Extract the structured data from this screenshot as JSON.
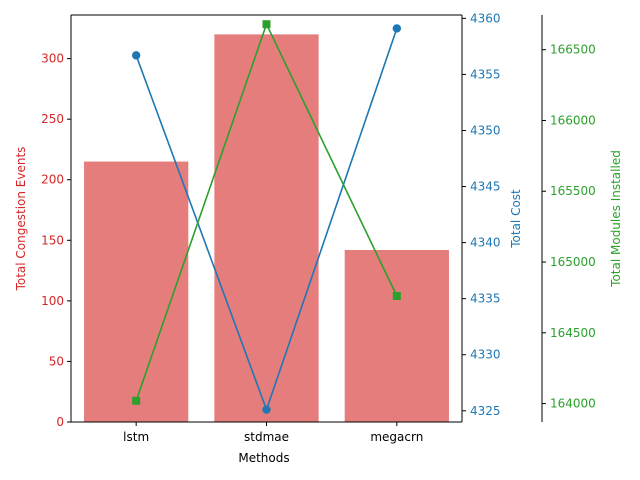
{
  "chart_data": {
    "type": "bar+line",
    "xlabel": "Methods",
    "categories": [
      "lstm",
      "stdmae",
      "megacrn"
    ],
    "axes": {
      "left": {
        "label": "Total Congestion Events",
        "color": "#d62728",
        "ylim": [
          0,
          336
        ],
        "ticks": [
          0,
          50,
          100,
          150,
          200,
          250,
          300
        ]
      },
      "right1": {
        "label": "Total Cost",
        "color": "#1f77b4",
        "ylim": [
          4324.0,
          4360.3
        ],
        "ticks": [
          4325,
          4330,
          4335,
          4340,
          4345,
          4350,
          4355,
          4360
        ]
      },
      "right2": {
        "label": "Total Modules Installed",
        "color": "#2ca02c",
        "ylim": [
          163870,
          166745
        ],
        "ticks": [
          164000,
          164500,
          165000,
          165500,
          166000,
          166500
        ]
      }
    },
    "series": [
      {
        "name": "Total Congestion Events",
        "kind": "bar",
        "axis": "left",
        "color": "#e06666",
        "values": [
          215,
          320,
          142
        ]
      },
      {
        "name": "Total Cost",
        "kind": "line",
        "axis": "right1",
        "marker": "circle",
        "color": "#1f77b4",
        "values": [
          4356.7,
          4325.1,
          4359.1
        ]
      },
      {
        "name": "Total Modules Installed",
        "kind": "line",
        "axis": "right2",
        "marker": "square",
        "color": "#2ca02c",
        "values": [
          164020,
          166680,
          164760
        ]
      }
    ],
    "grid": false,
    "legend": "none"
  }
}
